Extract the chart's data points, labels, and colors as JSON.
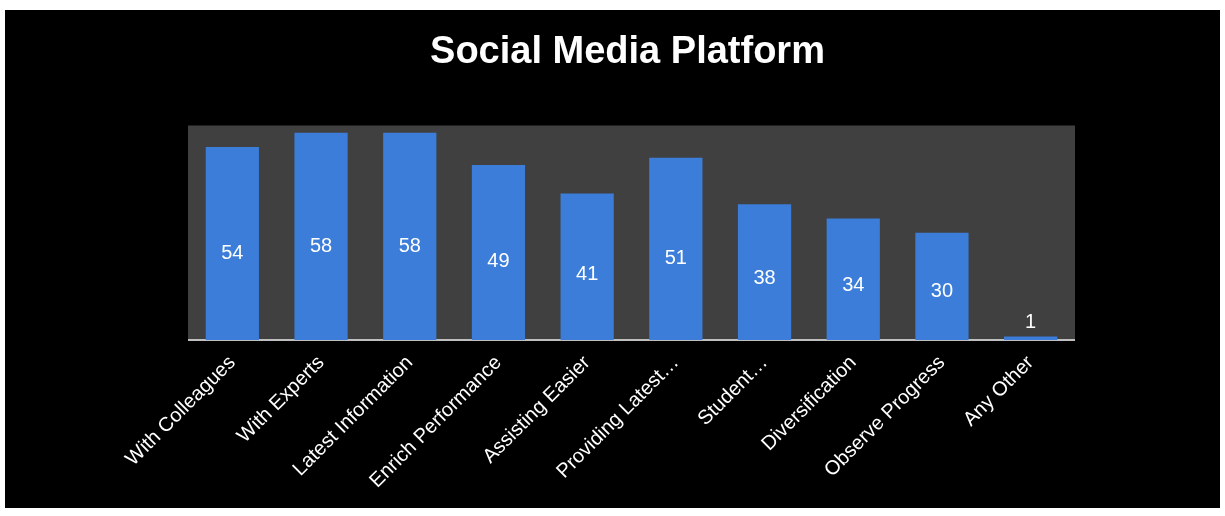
{
  "chart_data": {
    "type": "bar",
    "title": "Social Media Platform",
    "categories": [
      "With Colleagues",
      "With Experts",
      "Latest Information",
      "Enrich Performance",
      "Assisting Easier",
      "Providing Latest…",
      "Student…",
      "Diversification",
      "Observe Progress",
      "Any Other"
    ],
    "values": [
      54,
      58,
      58,
      49,
      41,
      51,
      38,
      34,
      30,
      1
    ],
    "color": "#3b7dd8",
    "relative": false,
    "data_labels": true,
    "grid": false,
    "legend": false
  }
}
